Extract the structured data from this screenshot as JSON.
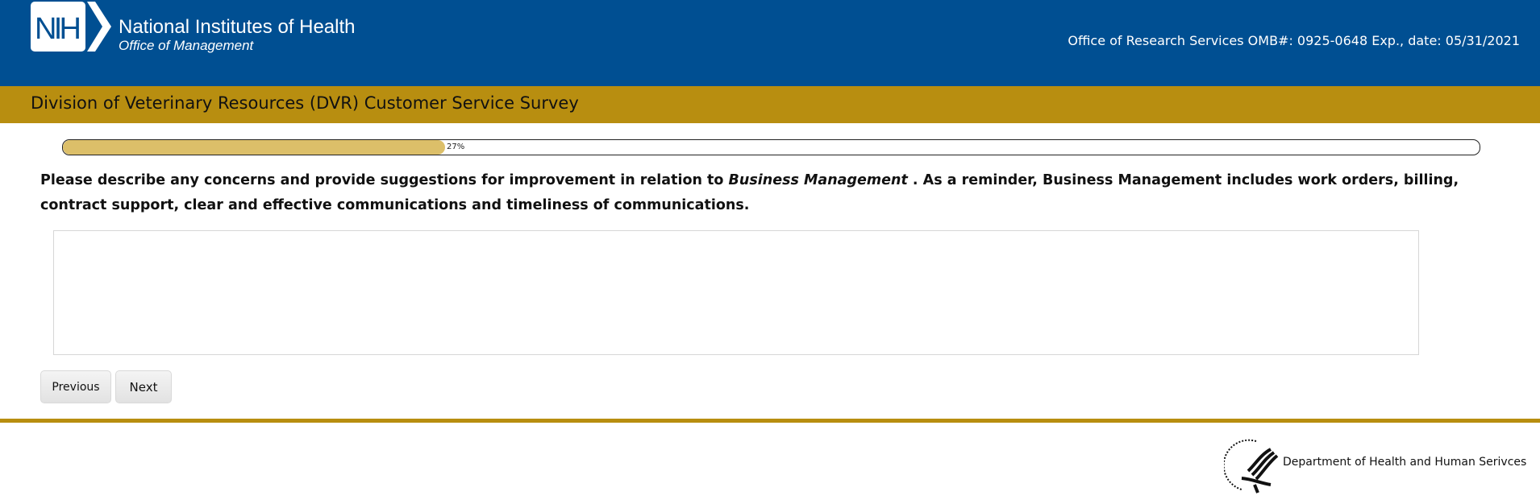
{
  "header": {
    "logo_text": "NIH",
    "org_name": "National Institutes of Health",
    "office": "Office of Management",
    "omb_text": "Office of Research Services OMB#: 0925-0648 Exp., date: 05/31/2021",
    "bg_color": "#004f92"
  },
  "band": {
    "title": "Division of Veterinary Resources (DVR) Customer Service Survey",
    "color": "#b88e10"
  },
  "progress": {
    "percent": 27,
    "label": "27%"
  },
  "question": {
    "before": "Please describe any concerns and provide suggestions for improvement in relation to ",
    "emphasis": "Business Management",
    "after": " . As a reminder, Business Management includes work orders, billing, contract support, clear and effective communications and timeliness of communications."
  },
  "answer": {
    "value": ""
  },
  "nav": {
    "previous": "Previous",
    "next": "Next"
  },
  "footer": {
    "dept": "Department of Health and Human Serivces"
  }
}
